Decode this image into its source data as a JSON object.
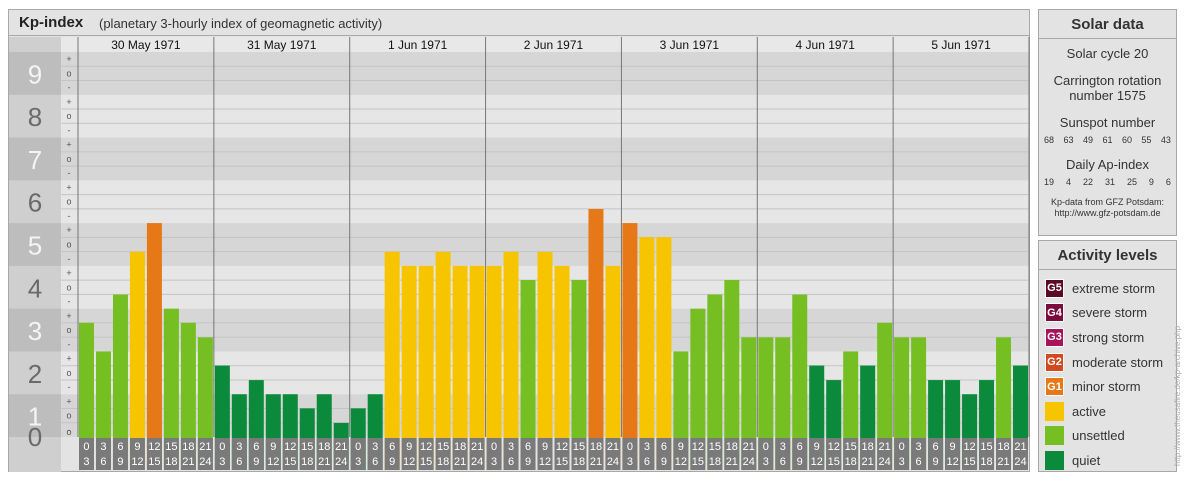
{
  "title": "Kp-index",
  "subtitle": "(planetary 3-hourly index of geomagnetic activity)",
  "chart_data": {
    "type": "bar",
    "ylim": [
      0,
      9
    ],
    "y_tick_labels": [
      "0",
      "1",
      "2",
      "3",
      "4",
      "5",
      "6",
      "7",
      "8",
      "9"
    ],
    "minor_tick_labels": [
      "+",
      "o",
      "-"
    ],
    "days": [
      "30 May 1971",
      "31 May 1971",
      "1 Jun 1971",
      "2 Jun 1971",
      "3 Jun 1971",
      "4 Jun 1971",
      "5 Jun 1971"
    ],
    "interval_start": [
      "0",
      "3",
      "6",
      "9",
      "12",
      "15",
      "18",
      "21"
    ],
    "interval_end": [
      "3",
      "6",
      "9",
      "12",
      "15",
      "18",
      "21",
      "24"
    ],
    "values": [
      [
        2.67,
        2.0,
        3.33,
        4.33,
        5.0,
        3.0,
        2.67,
        2.33
      ],
      [
        1.67,
        1.0,
        1.33,
        1.0,
        1.0,
        0.67,
        1.0,
        0.33
      ],
      [
        0.67,
        1.0,
        4.33,
        4.0,
        4.0,
        4.33,
        4.0,
        4.0
      ],
      [
        4.0,
        4.33,
        3.67,
        4.33,
        4.0,
        3.67,
        5.33,
        4.0
      ],
      [
        5.0,
        4.67,
        4.67,
        2.0,
        3.0,
        3.33,
        3.67,
        2.33
      ],
      [
        2.33,
        2.33,
        3.33,
        1.67,
        1.33,
        2.0,
        1.67,
        2.67
      ],
      [
        2.33,
        2.33,
        1.33,
        1.33,
        1.0,
        1.33,
        2.33,
        1.67
      ]
    ],
    "colors": {
      "quiet": "#0a8a3a",
      "unsettled": "#76bf22",
      "active": "#f7c400",
      "G1": "#e67817",
      "G2": "#d14a1f",
      "G3": "#a8135a",
      "G4": "#7a0d3d",
      "G5": "#5a0a26"
    },
    "grid": true
  },
  "solar": {
    "title": "Solar data",
    "cycle": "Solar cycle 20",
    "carrington_line1": "Carrington rotation",
    "carrington_line2": "number 1575",
    "sunspot_label": "Sunspot number",
    "sunspot_numbers": [
      "68",
      "63",
      "49",
      "61",
      "60",
      "55",
      "43"
    ],
    "ap_label": "Daily Ap-index",
    "ap_values": [
      "19",
      "4",
      "22",
      "31",
      "25",
      "9",
      "6"
    ],
    "source_line1": "Kp-data from GFZ Potsdam:",
    "source_line2": "http://www.gfz-potsdam.de"
  },
  "activity": {
    "title": "Activity levels",
    "levels": [
      {
        "badge": "G5",
        "label": "extreme storm",
        "color": "#5a0a26"
      },
      {
        "badge": "G4",
        "label": "severe storm",
        "color": "#7a0d3d"
      },
      {
        "badge": "G3",
        "label": "strong storm",
        "color": "#a8135a"
      },
      {
        "badge": "G2",
        "label": "moderate storm",
        "color": "#d14a1f"
      },
      {
        "badge": "G1",
        "label": "minor storm",
        "color": "#e67817"
      },
      {
        "badge": "",
        "label": "active",
        "color": "#f7c400"
      },
      {
        "badge": "",
        "label": "unsettled",
        "color": "#76bf22"
      },
      {
        "badge": "",
        "label": "quiet",
        "color": "#0a8a3a"
      }
    ]
  },
  "credit": "http://www.theusafire.de/kp-archive.php"
}
